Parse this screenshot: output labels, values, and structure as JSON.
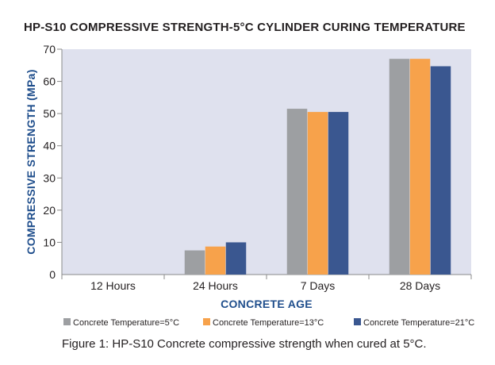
{
  "chart_data": {
    "type": "bar",
    "title": "HP-S10 COMPRESSIVE STRENGTH-5°C CYLINDER CURING TEMPERATURE",
    "xlabel": "CONCRETE AGE",
    "ylabel": "COMPRESSIVE STRENGTH (MPa)",
    "categories": [
      "12 Hours",
      "24 Hours",
      "7 Days",
      "28 Days"
    ],
    "yticks": [
      "0",
      "10",
      "20",
      "30",
      "40",
      "50",
      "60",
      "70"
    ],
    "ylim": [
      0,
      70
    ],
    "grid": false,
    "legend_position": "bottom",
    "series": [
      {
        "name": "Concrete Temperature=5°C",
        "color": "#9d9fa2",
        "values": [
          0,
          7.5,
          51.5,
          67
        ]
      },
      {
        "name": "Concrete Temperature=13°C",
        "color": "#f7a24b",
        "values": [
          0,
          8.7,
          50.5,
          67
        ]
      },
      {
        "name": "Concrete Temperature=21°C",
        "color": "#3a5790",
        "values": [
          0,
          10,
          50.5,
          64.7
        ]
      }
    ],
    "plot_background": "#dfe1ee",
    "axis_title_color": "#1f4e8c"
  },
  "caption": "Figure 1: HP-S10 Concrete compressive strength when cured at 5°C."
}
